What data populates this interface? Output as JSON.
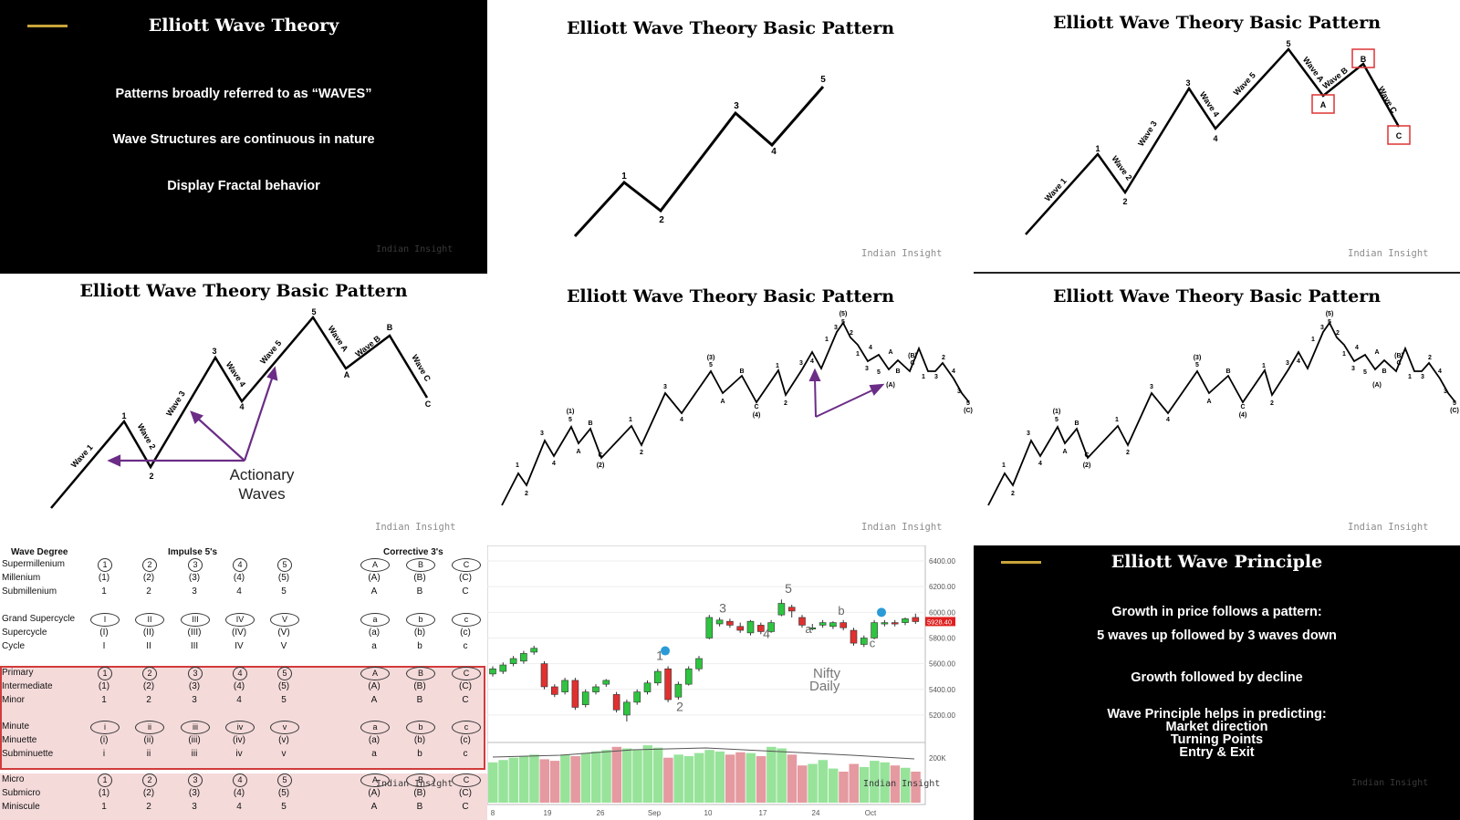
{
  "panel1": {
    "title": "Elliott Wave Theory",
    "lines": [
      "Patterns broadly referred to as “WAVES”",
      "Wave Structures are continuous in nature",
      "Display Fractal behavior"
    ],
    "watermark": "Indian Insight"
  },
  "panel2": {
    "title": "Elliott Wave Theory Basic Pattern",
    "labels": [
      "1",
      "2",
      "3",
      "4",
      "5"
    ],
    "watermark": "Indian Insight"
  },
  "panel3": {
    "title": "Elliott Wave Theory Basic Pattern",
    "points": [
      "1",
      "2",
      "3",
      "4",
      "5",
      "A",
      "B",
      "C"
    ],
    "wave_names": [
      "Wave 1",
      "Wave 2",
      "Wave 3",
      "Wave 4",
      "Wave 5",
      "Wave A",
      "Wave B",
      "Wave C"
    ],
    "watermark": "Indian Insight"
  },
  "panel4": {
    "title": "Elliott Wave Theory Basic Pattern",
    "points": [
      "1",
      "2",
      "3",
      "4",
      "5",
      "A",
      "B",
      "C"
    ],
    "wave_names": [
      "Wave 1",
      "Wave 2",
      "Wave 3",
      "Wave 4",
      "Wave 5",
      "Wave A",
      "Wave B",
      "Wave C"
    ],
    "annotation_line1": "Actionary",
    "annotation_line2": "Waves",
    "watermark": "Indian Insight"
  },
  "panel5": {
    "title": "Elliott Wave Theory Basic Pattern",
    "watermark": "Indian Insight"
  },
  "panel6": {
    "title": "Elliott Wave Theory Basic Pattern",
    "watermark": "Indian Insight"
  },
  "wave_degree_table": {
    "headers": [
      "Wave Degree",
      "Impulse 5's",
      "Corrective 3's"
    ],
    "rows": [
      {
        "degree": "Supermillenium",
        "impulse": [
          "1",
          "2",
          "3",
          "4",
          "5"
        ],
        "corrective": [
          "A",
          "B",
          "C"
        ],
        "circled": true
      },
      {
        "degree": "Millenium",
        "impulse": [
          "(1)",
          "(2)",
          "(3)",
          "(4)",
          "(5)"
        ],
        "corrective": [
          "(A)",
          "(B)",
          "(C)"
        ]
      },
      {
        "degree": "Submillenium",
        "impulse": [
          "1",
          "2",
          "3",
          "4",
          "5"
        ],
        "corrective": [
          "A",
          "B",
          "C"
        ]
      },
      {
        "degree": "Grand Supercycle",
        "impulse": [
          "I",
          "II",
          "III",
          "IV",
          "V"
        ],
        "corrective": [
          "a",
          "b",
          "c"
        ],
        "circled": true
      },
      {
        "degree": "Supercycle",
        "impulse": [
          "(I)",
          "(II)",
          "(III)",
          "(IV)",
          "(V)"
        ],
        "corrective": [
          "(a)",
          "(b)",
          "(c)"
        ]
      },
      {
        "degree": "Cycle",
        "impulse": [
          "I",
          "II",
          "III",
          "IV",
          "V"
        ],
        "corrective": [
          "a",
          "b",
          "c"
        ]
      },
      {
        "degree": "Primary",
        "impulse": [
          "1",
          "2",
          "3",
          "4",
          "5"
        ],
        "corrective": [
          "A",
          "B",
          "C"
        ],
        "circled": true
      },
      {
        "degree": "Intermediate",
        "impulse": [
          "(1)",
          "(2)",
          "(3)",
          "(4)",
          "(5)"
        ],
        "corrective": [
          "(A)",
          "(B)",
          "(C)"
        ]
      },
      {
        "degree": "Minor",
        "impulse": [
          "1",
          "2",
          "3",
          "4",
          "5"
        ],
        "corrective": [
          "A",
          "B",
          "C"
        ]
      },
      {
        "degree": "Minute",
        "impulse": [
          "i",
          "ii",
          "iii",
          "iv",
          "v"
        ],
        "corrective": [
          "a",
          "b",
          "c"
        ],
        "circled": true
      },
      {
        "degree": "Minuette",
        "impulse": [
          "(i)",
          "(ii)",
          "(iii)",
          "(iv)",
          "(v)"
        ],
        "corrective": [
          "(a)",
          "(b)",
          "(c)"
        ]
      },
      {
        "degree": "Subminuette",
        "impulse": [
          "i",
          "ii",
          "iii",
          "iv",
          "v"
        ],
        "corrective": [
          "a",
          "b",
          "c"
        ]
      },
      {
        "degree": "Micro",
        "impulse": [
          "1",
          "2",
          "3",
          "4",
          "5"
        ],
        "corrective": [
          "A",
          "B",
          "C"
        ],
        "circled": true
      },
      {
        "degree": "Submicro",
        "impulse": [
          "(1)",
          "(2)",
          "(3)",
          "(4)",
          "(5)"
        ],
        "corrective": [
          "(A)",
          "(B)",
          "(C)"
        ]
      },
      {
        "degree": "Miniscule",
        "impulse": [
          "1",
          "2",
          "3",
          "4",
          "5"
        ],
        "corrective": [
          "A",
          "B",
          "C"
        ]
      }
    ],
    "watermark": "Indian Insight"
  },
  "nifty_chart": {
    "label_line1": "Nifty",
    "label_line2": "Daily",
    "wave_labels": [
      "1",
      "2",
      "3",
      "4",
      "5",
      "a",
      "b",
      "c"
    ],
    "price_ticks": [
      "6400.00",
      "6200.00",
      "6000.00",
      "5800.00",
      "5600.00",
      "5400.00",
      "5200.00"
    ],
    "last_price": "5928.40",
    "volume_tick": "200K",
    "date_ticks": [
      "8",
      "19",
      "26",
      "Sep",
      "10",
      "17",
      "24",
      "Oct"
    ],
    "watermark": "Indian Insight",
    "colors": {
      "up": "#2ec440",
      "down": "#e03030",
      "vol_up": "#97e39a",
      "vol_down": "#e49aa0"
    }
  },
  "panel9": {
    "title": "Elliott Wave Principle",
    "lines": [
      "Growth in price follows a pattern:",
      "5 waves up followed by 3 waves down",
      "Growth followed by decline",
      "Wave Principle helps in predicting:",
      "Market direction",
      "Turning Points",
      "Entry & Exit"
    ],
    "watermark": "Indian Insight"
  }
}
